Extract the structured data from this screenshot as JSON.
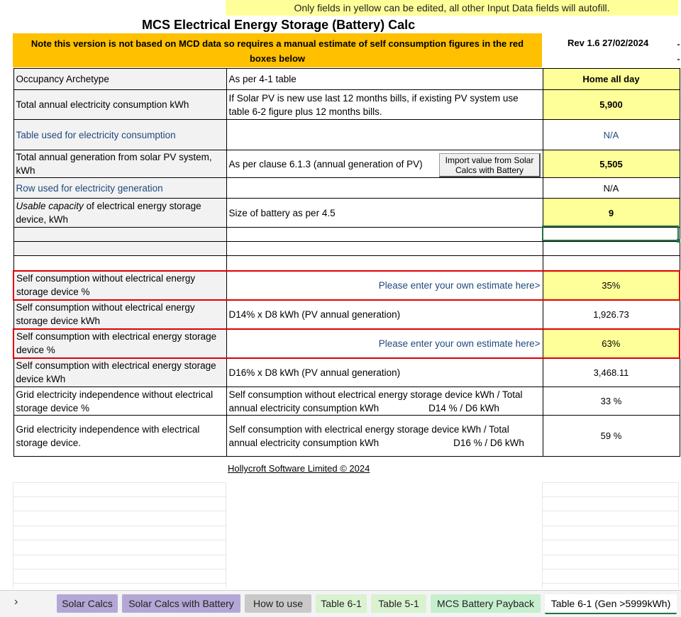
{
  "banner": "Only fields in yellow can be edited, all other Input Data fields will autofill.",
  "title": "MCS Electrical Energy Storage (Battery) Calc",
  "note": "Note this version is not based on MCD data so requires a manual estimate of self consumption figures in the red boxes below",
  "rev": "Rev 1.6  27/02/2024",
  "import_button": "Import value from Solar Calcs with Battery",
  "rows": [
    {
      "label": "Occupancy Archetype",
      "desc": "As per 4-1 table",
      "value": "Home all day"
    },
    {
      "label": "Total annual electricity consumption  kWh",
      "desc": "If Solar PV is new use last 12 months bills, if existing PV system use table 6-2 figure plus 12 months bills.",
      "value": "5,900"
    },
    {
      "label": "Table used for electricity consumption",
      "desc": "",
      "value": "N/A"
    },
    {
      "label": "Total annual generation from solar PV system, kWh",
      "desc": "As per clause 6.1.3 (annual generation of PV)",
      "value": "5,505"
    },
    {
      "label": "Row used for electricity generation",
      "desc": "",
      "value": "N/A"
    },
    {
      "label_em": "Usable capacity",
      "label": " of electrical energy storage device, kWh",
      "desc": "Size of battery as per 4.5",
      "value": "9"
    },
    {
      "label": "Self consumption without electrical energy storage device %",
      "desc": "Please enter your own estimate here>",
      "value": "35%"
    },
    {
      "label": "Self consumption without electrical energy storage device kWh",
      "desc": "D14% x D8 kWh  (PV annual generation)",
      "value": "1,926.73"
    },
    {
      "label": "Self consumption with electrical energy storage device %",
      "desc": "Please enter your own estimate here>",
      "value": "63%"
    },
    {
      "label": "Self consumption with electrical energy storage device kWh",
      "desc": "D16% x D8 kWh  (PV annual generation)",
      "value": "3,468.11"
    },
    {
      "label": "Grid electricity independence without electrical storage device %",
      "desc": "Self consumption without electrical energy storage device kWh / Total annual electricity consumption  kWh",
      "formula": "D14 % / D6 kWh",
      "value": "33 %"
    },
    {
      "label": "Grid electricity independence with electrical storage device.",
      "desc": "Self consumption with electrical energy storage device kWh / Total annual electricity consumption  kWh",
      "formula": "D16 % / D6 kWh",
      "value": "59 %"
    }
  ],
  "footer": "Hollycroft Software Limited © 2024",
  "tabs": [
    {
      "label": "Solar Calcs"
    },
    {
      "label": "Solar Calcs with Battery"
    },
    {
      "label": "How to use"
    },
    {
      "label": "Table 6-1"
    },
    {
      "label": "Table 5-1"
    },
    {
      "label": "MCS Battery Payback"
    },
    {
      "label": "Table 6-1 (Gen >5999kWh)"
    }
  ],
  "colors": {
    "yellow": "#ffff99",
    "orange": "#ffc000",
    "red_box": "#e00000",
    "excel_green": "#217346",
    "label_gray": "#f2f2f2"
  }
}
